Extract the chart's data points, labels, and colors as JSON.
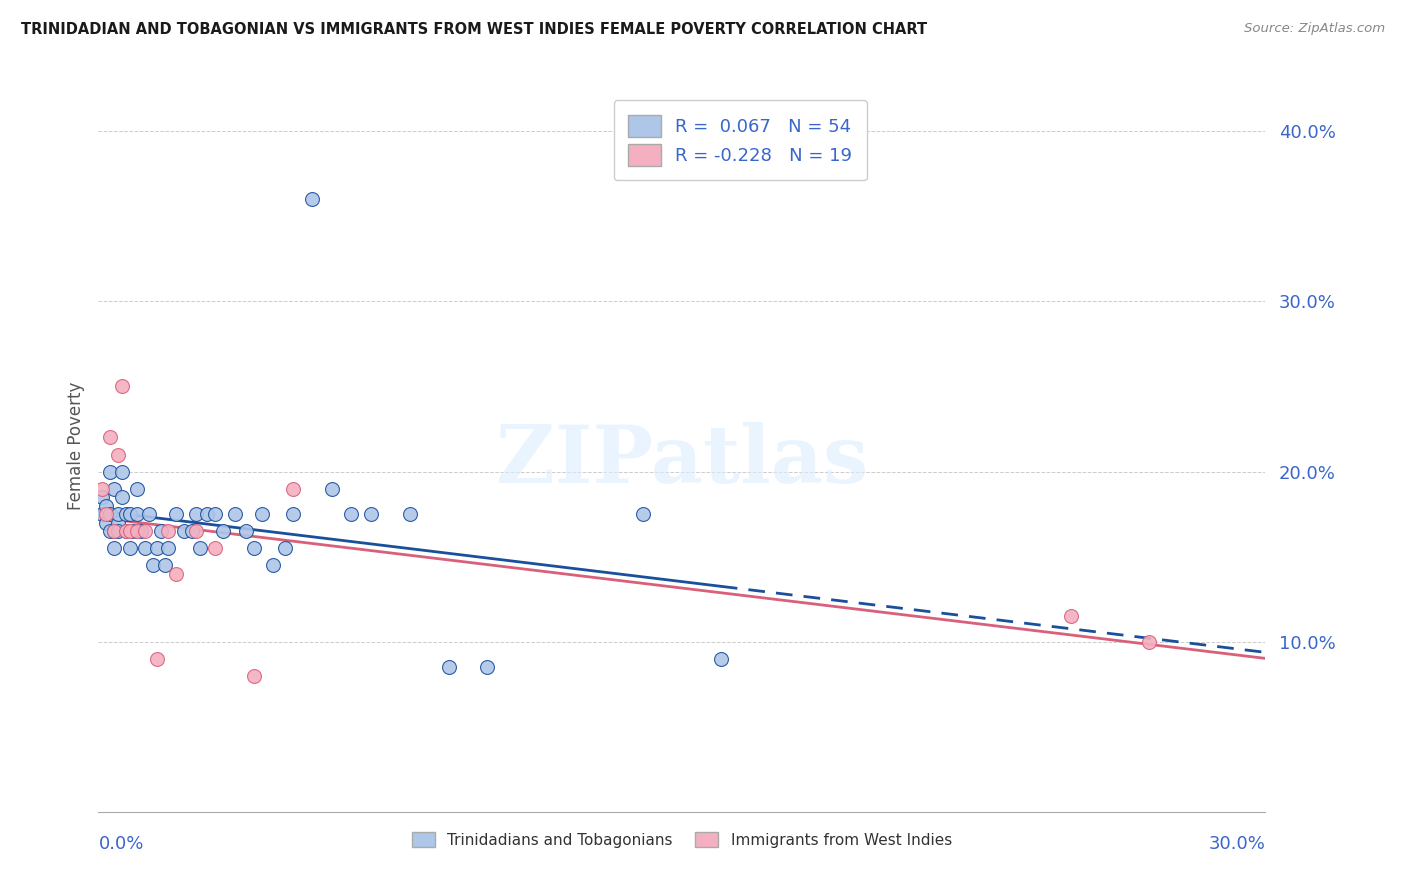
{
  "title": "TRINIDADIAN AND TOBAGONIAN VS IMMIGRANTS FROM WEST INDIES FEMALE POVERTY CORRELATION CHART",
  "source": "Source: ZipAtlas.com",
  "ylabel": "Female Poverty",
  "ytick_labels": [
    "10.0%",
    "20.0%",
    "30.0%",
    "40.0%"
  ],
  "ytick_values": [
    0.1,
    0.2,
    0.3,
    0.4
  ],
  "xlim": [
    0.0,
    0.3
  ],
  "ylim": [
    0.0,
    0.43
  ],
  "watermark_text": "ZIPatlas",
  "color_blue": "#aec6e8",
  "color_blue_line": "#1a4f9c",
  "color_pink": "#f4b0c0",
  "color_pink_line": "#d9607a",
  "color_text_blue": "#3a66cc",
  "background": "#ffffff",
  "grid_color": "#cccccc",
  "R1": 0.067,
  "N1": 54,
  "R2": -0.228,
  "N2": 19,
  "series1_x": [
    0.001,
    0.001,
    0.002,
    0.002,
    0.003,
    0.003,
    0.003,
    0.004,
    0.004,
    0.004,
    0.005,
    0.005,
    0.005,
    0.006,
    0.006,
    0.007,
    0.007,
    0.008,
    0.008,
    0.009,
    0.01,
    0.01,
    0.011,
    0.012,
    0.013,
    0.014,
    0.015,
    0.016,
    0.017,
    0.018,
    0.02,
    0.022,
    0.024,
    0.025,
    0.026,
    0.028,
    0.03,
    0.032,
    0.035,
    0.038,
    0.04,
    0.042,
    0.045,
    0.048,
    0.05,
    0.055,
    0.06,
    0.065,
    0.07,
    0.08,
    0.09,
    0.1,
    0.14,
    0.16
  ],
  "series1_y": [
    0.175,
    0.185,
    0.17,
    0.18,
    0.165,
    0.175,
    0.2,
    0.165,
    0.155,
    0.19,
    0.17,
    0.175,
    0.165,
    0.2,
    0.185,
    0.175,
    0.165,
    0.175,
    0.155,
    0.165,
    0.175,
    0.19,
    0.165,
    0.155,
    0.175,
    0.145,
    0.155,
    0.165,
    0.145,
    0.155,
    0.175,
    0.165,
    0.165,
    0.175,
    0.155,
    0.175,
    0.175,
    0.165,
    0.175,
    0.165,
    0.155,
    0.175,
    0.145,
    0.155,
    0.175,
    0.36,
    0.19,
    0.175,
    0.175,
    0.175,
    0.085,
    0.085,
    0.175,
    0.09
  ],
  "series1_outlier_x": [
    0.055
  ],
  "series1_outlier_y": [
    0.36
  ],
  "series2_x": [
    0.001,
    0.002,
    0.003,
    0.004,
    0.005,
    0.006,
    0.007,
    0.008,
    0.01,
    0.012,
    0.015,
    0.018,
    0.02,
    0.025,
    0.03,
    0.04,
    0.05,
    0.25,
    0.27
  ],
  "series2_y": [
    0.19,
    0.175,
    0.22,
    0.165,
    0.21,
    0.25,
    0.165,
    0.165,
    0.165,
    0.165,
    0.09,
    0.165,
    0.14,
    0.165,
    0.155,
    0.08,
    0.19,
    0.115,
    0.1
  ]
}
